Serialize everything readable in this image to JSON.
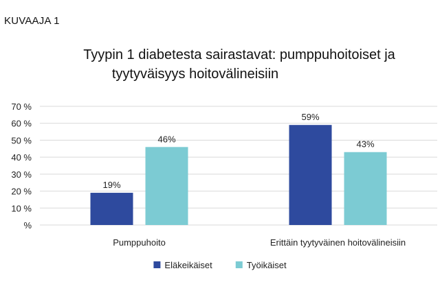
{
  "figure_label": "KUVAAJA 1",
  "chart_data": {
    "type": "bar",
    "title_lines": [
      "Tyypin 1 diabetesta sairastavat: pumppuhoitoiset ja",
      "tyytyväisyys hoitovälineisiin"
    ],
    "categories": [
      "Pumppuhoito",
      "Erittäin tyytyväinen hoitovälineisiin"
    ],
    "series": [
      {
        "name": "Eläkeikäiset",
        "color": "#2e4a9e",
        "values": [
          19,
          59
        ],
        "labels": [
          "19%",
          "59%"
        ]
      },
      {
        "name": "Työikäiset",
        "color": "#7ccbd3",
        "values": [
          46,
          43
        ],
        "labels": [
          "46%",
          "43%"
        ]
      }
    ],
    "ylim": [
      0,
      70
    ],
    "yticks": [
      {
        "value": 0,
        "label": "%"
      },
      {
        "value": 10,
        "label": "10 %"
      },
      {
        "value": 20,
        "label": "20 %"
      },
      {
        "value": 30,
        "label": "30 %"
      },
      {
        "value": 40,
        "label": "40 %"
      },
      {
        "value": 50,
        "label": "50 %"
      },
      {
        "value": 60,
        "label": "60 %"
      },
      {
        "value": 70,
        "label": "70 %"
      }
    ],
    "grid": true,
    "gridline_color": "#d9d9d9",
    "legend_position": "bottom-center"
  }
}
